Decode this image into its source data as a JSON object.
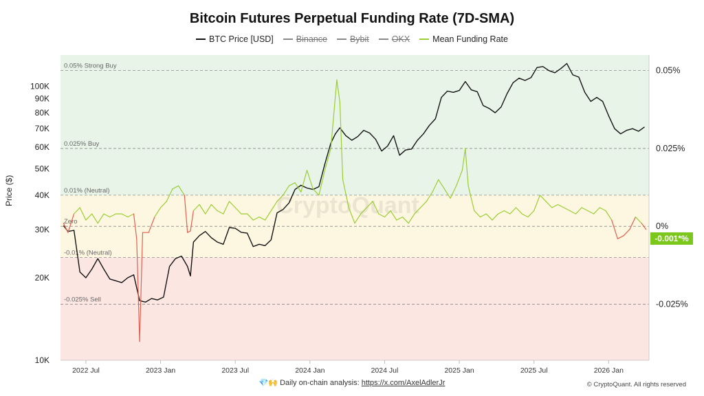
{
  "title": "Bitcoin Futures Perpetual Funding Rate (7D-SMA)",
  "legend": [
    {
      "label": "BTC Price [USD]",
      "color": "#111111",
      "active": true
    },
    {
      "label": "Binance",
      "color": "#888888",
      "active": false
    },
    {
      "label": "Bybit",
      "color": "#888888",
      "active": false
    },
    {
      "label": "OKX",
      "color": "#888888",
      "active": false
    },
    {
      "label": "Mean Funding Rate",
      "color": "#9acd32",
      "active": true
    }
  ],
  "footer": {
    "icons": "💎🙌",
    "text": "Daily on-chain analysis: ",
    "link": "https://x.com/AxelAdlerJr"
  },
  "copyright": "© CryptoQuant. All rights reserved",
  "watermark": "CryptoQuant",
  "current_value": "-0.001*%",
  "chart_data": {
    "type": "line",
    "title": "Bitcoin Futures Perpetual Funding Rate (7D-SMA)",
    "ylabel": "Price ($)",
    "y_scale": "log",
    "ylim": [
      10000,
      130000
    ],
    "y_right_ticks": [
      "0.05%",
      "0.025%",
      "0%",
      "-0.025%"
    ],
    "y_ticks": [
      "10K",
      "20K",
      "30K",
      "40K",
      "50K",
      "60K",
      "70K",
      "80K",
      "90K",
      "100K"
    ],
    "y_tick_values": [
      10000,
      20000,
      30000,
      40000,
      50000,
      60000,
      70000,
      80000,
      90000,
      100000
    ],
    "y_right_tick_values": [
      0.05,
      0.025,
      0,
      -0.025
    ],
    "y_right_lim": [
      -0.043,
      0.055
    ],
    "x_ticks": [
      "2022 Jul",
      "2023 Jan",
      "2023 Jul",
      "2024 Jan",
      "2024 Jul",
      "2025 Jan",
      "2025 Jul",
      "2026 Jan"
    ],
    "x_tick_values": [
      2022.5,
      2023.0,
      2023.5,
      2024.0,
      2024.5,
      2025.0,
      2025.5,
      2026.0
    ],
    "xlim": [
      2022.33,
      2026.27
    ],
    "zones": [
      {
        "label": "Strong Buy / Buy",
        "from": 0.01,
        "to": 0.055,
        "color": "#e8f4e8"
      },
      {
        "label": "Neutral",
        "from": -0.01,
        "to": 0.01,
        "color": "#fdf6e0"
      },
      {
        "label": "Sell",
        "from": -0.043,
        "to": -0.01,
        "color": "#fbe6e1"
      }
    ],
    "levels": [
      {
        "label": "0.05% Strong Buy",
        "value": 0.05
      },
      {
        "label": "0.025% Buy",
        "value": 0.025
      },
      {
        "label": "0.01% (Neutral)",
        "value": 0.01
      },
      {
        "label": "Zero",
        "value": 0
      },
      {
        "label": "-0.01% (Neutral)",
        "value": -0.01
      },
      {
        "label": "-0.025% Sell",
        "value": -0.025
      }
    ],
    "series": [
      {
        "name": "BTC Price [USD]",
        "axis": "left",
        "color": "#111111",
        "points": [
          [
            2022.35,
            31000
          ],
          [
            2022.38,
            29500
          ],
          [
            2022.42,
            29800
          ],
          [
            2022.46,
            21000
          ],
          [
            2022.5,
            20000
          ],
          [
            2022.54,
            21500
          ],
          [
            2022.58,
            23500
          ],
          [
            2022.62,
            21500
          ],
          [
            2022.66,
            19800
          ],
          [
            2022.7,
            19500
          ],
          [
            2022.74,
            19200
          ],
          [
            2022.78,
            20000
          ],
          [
            2022.82,
            20500
          ],
          [
            2022.86,
            16500
          ],
          [
            2022.9,
            16300
          ],
          [
            2022.94,
            16800
          ],
          [
            2022.98,
            16600
          ],
          [
            2023.02,
            17000
          ],
          [
            2023.06,
            22000
          ],
          [
            2023.1,
            23500
          ],
          [
            2023.14,
            24000
          ],
          [
            2023.18,
            22000
          ],
          [
            2023.2,
            20300
          ],
          [
            2023.22,
            27000
          ],
          [
            2023.26,
            28500
          ],
          [
            2023.3,
            29500
          ],
          [
            2023.34,
            28000
          ],
          [
            2023.38,
            27000
          ],
          [
            2023.42,
            26500
          ],
          [
            2023.46,
            30500
          ],
          [
            2023.5,
            30300
          ],
          [
            2023.54,
            29300
          ],
          [
            2023.58,
            29100
          ],
          [
            2023.62,
            26000
          ],
          [
            2023.66,
            26500
          ],
          [
            2023.7,
            26200
          ],
          [
            2023.74,
            27500
          ],
          [
            2023.78,
            34500
          ],
          [
            2023.82,
            35500
          ],
          [
            2023.86,
            37500
          ],
          [
            2023.9,
            42000
          ],
          [
            2023.94,
            43500
          ],
          [
            2023.98,
            42500
          ],
          [
            2024.02,
            42000
          ],
          [
            2024.06,
            43000
          ],
          [
            2024.1,
            52000
          ],
          [
            2024.14,
            62000
          ],
          [
            2024.17,
            67000
          ],
          [
            2024.2,
            70500
          ],
          [
            2024.24,
            66000
          ],
          [
            2024.28,
            63500
          ],
          [
            2024.32,
            65500
          ],
          [
            2024.36,
            69000
          ],
          [
            2024.4,
            67500
          ],
          [
            2024.44,
            64000
          ],
          [
            2024.48,
            58000
          ],
          [
            2024.52,
            60500
          ],
          [
            2024.56,
            66000
          ],
          [
            2024.6,
            56000
          ],
          [
            2024.64,
            58500
          ],
          [
            2024.68,
            59000
          ],
          [
            2024.72,
            63500
          ],
          [
            2024.76,
            67000
          ],
          [
            2024.8,
            72000
          ],
          [
            2024.84,
            76000
          ],
          [
            2024.88,
            91000
          ],
          [
            2024.92,
            96000
          ],
          [
            2024.96,
            95000
          ],
          [
            2025.0,
            96500
          ],
          [
            2025.04,
            104000
          ],
          [
            2025.08,
            97000
          ],
          [
            2025.12,
            95500
          ],
          [
            2025.16,
            85000
          ],
          [
            2025.2,
            83000
          ],
          [
            2025.24,
            80000
          ],
          [
            2025.28,
            84000
          ],
          [
            2025.32,
            94000
          ],
          [
            2025.36,
            103000
          ],
          [
            2025.4,
            107000
          ],
          [
            2025.44,
            105000
          ],
          [
            2025.48,
            107500
          ],
          [
            2025.52,
            117000
          ],
          [
            2025.56,
            118000
          ],
          [
            2025.6,
            114000
          ],
          [
            2025.64,
            112000
          ],
          [
            2025.68,
            116000
          ],
          [
            2025.72,
            121000
          ],
          [
            2025.76,
            110000
          ],
          [
            2025.8,
            108000
          ],
          [
            2025.84,
            95000
          ],
          [
            2025.88,
            88000
          ],
          [
            2025.92,
            91000
          ],
          [
            2025.96,
            88000
          ],
          [
            2026.0,
            78000
          ],
          [
            2026.04,
            70000
          ],
          [
            2026.08,
            67000
          ],
          [
            2026.12,
            69000
          ],
          [
            2026.16,
            70000
          ],
          [
            2026.2,
            68500
          ],
          [
            2026.24,
            71000
          ]
        ]
      },
      {
        "name": "Mean Funding Rate",
        "axis": "right",
        "color": "#9acd32",
        "negative_color": "#e06050",
        "points": [
          [
            2022.35,
            0.001
          ],
          [
            2022.38,
            -0.002
          ],
          [
            2022.42,
            0.004
          ],
          [
            2022.46,
            0.006
          ],
          [
            2022.5,
            0.002
          ],
          [
            2022.54,
            0.004
          ],
          [
            2022.58,
            0.001
          ],
          [
            2022.62,
            0.004
          ],
          [
            2022.66,
            0.003
          ],
          [
            2022.7,
            0.004
          ],
          [
            2022.74,
            0.004
          ],
          [
            2022.78,
            0.003
          ],
          [
            2022.82,
            0.004
          ],
          [
            2022.84,
            -0.004
          ],
          [
            2022.86,
            -0.037
          ],
          [
            2022.88,
            -0.002
          ],
          [
            2022.92,
            -0.002
          ],
          [
            2022.96,
            0.003
          ],
          [
            2023.0,
            0.006
          ],
          [
            2023.04,
            0.008
          ],
          [
            2023.08,
            0.012
          ],
          [
            2023.12,
            0.013
          ],
          [
            2023.16,
            0.01
          ],
          [
            2023.18,
            -0.002
          ],
          [
            2023.2,
            -0.0015
          ],
          [
            2023.22,
            0.005
          ],
          [
            2023.26,
            0.007
          ],
          [
            2023.3,
            0.004
          ],
          [
            2023.34,
            0.007
          ],
          [
            2023.38,
            0.005
          ],
          [
            2023.42,
            0.004
          ],
          [
            2023.46,
            0.008
          ],
          [
            2023.5,
            0.006
          ],
          [
            2023.54,
            0.004
          ],
          [
            2023.58,
            0.004
          ],
          [
            2023.62,
            0.002
          ],
          [
            2023.66,
            0.003
          ],
          [
            2023.7,
            0.002
          ],
          [
            2023.74,
            0.005
          ],
          [
            2023.78,
            0.008
          ],
          [
            2023.82,
            0.01
          ],
          [
            2023.86,
            0.013
          ],
          [
            2023.9,
            0.014
          ],
          [
            2023.94,
            0.011
          ],
          [
            2023.98,
            0.018
          ],
          [
            2024.02,
            0.012
          ],
          [
            2024.06,
            0.01
          ],
          [
            2024.1,
            0.018
          ],
          [
            2024.14,
            0.025
          ],
          [
            2024.18,
            0.047
          ],
          [
            2024.2,
            0.04
          ],
          [
            2024.22,
            0.015
          ],
          [
            2024.26,
            0.006
          ],
          [
            2024.3,
            0.001
          ],
          [
            2024.34,
            0.004
          ],
          [
            2024.38,
            0.006
          ],
          [
            2024.42,
            0.008
          ],
          [
            2024.46,
            0.004
          ],
          [
            2024.5,
            0.003
          ],
          [
            2024.54,
            0.005
          ],
          [
            2024.58,
            0.002
          ],
          [
            2024.62,
            0.003
          ],
          [
            2024.66,
            0.001
          ],
          [
            2024.7,
            0.004
          ],
          [
            2024.74,
            0.006
          ],
          [
            2024.78,
            0.008
          ],
          [
            2024.82,
            0.011
          ],
          [
            2024.86,
            0.015
          ],
          [
            2024.9,
            0.012
          ],
          [
            2024.94,
            0.009
          ],
          [
            2024.98,
            0.013
          ],
          [
            2025.02,
            0.018
          ],
          [
            2025.04,
            0.025
          ],
          [
            2025.06,
            0.013
          ],
          [
            2025.1,
            0.005
          ],
          [
            2025.14,
            0.003
          ],
          [
            2025.18,
            0.004
          ],
          [
            2025.22,
            0.002
          ],
          [
            2025.26,
            0.004
          ],
          [
            2025.3,
            0.005
          ],
          [
            2025.34,
            0.004
          ],
          [
            2025.38,
            0.006
          ],
          [
            2025.42,
            0.004
          ],
          [
            2025.46,
            0.003
          ],
          [
            2025.5,
            0.005
          ],
          [
            2025.54,
            0.01
          ],
          [
            2025.58,
            0.008
          ],
          [
            2025.62,
            0.006
          ],
          [
            2025.66,
            0.007
          ],
          [
            2025.7,
            0.006
          ],
          [
            2025.74,
            0.005
          ],
          [
            2025.78,
            0.004
          ],
          [
            2025.82,
            0.006
          ],
          [
            2025.86,
            0.005
          ],
          [
            2025.9,
            0.004
          ],
          [
            2025.94,
            0.006
          ],
          [
            2025.98,
            0.005
          ],
          [
            2026.02,
            0.002
          ],
          [
            2026.06,
            -0.004
          ],
          [
            2026.1,
            -0.003
          ],
          [
            2026.14,
            -0.001
          ],
          [
            2026.18,
            0.003
          ],
          [
            2026.22,
            0.001
          ],
          [
            2026.25,
            -0.001
          ]
        ]
      }
    ]
  }
}
